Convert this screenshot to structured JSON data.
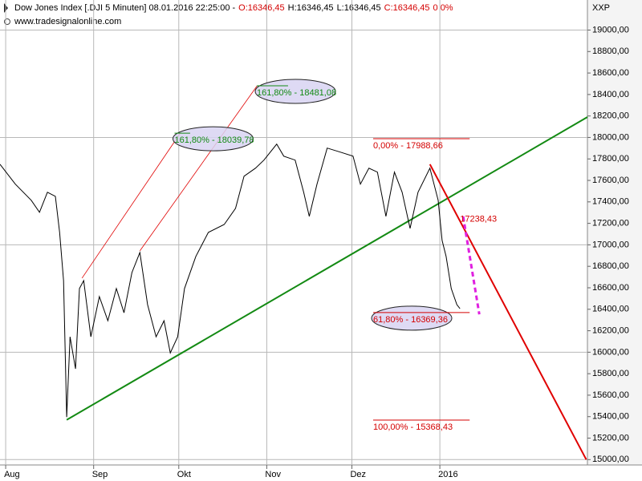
{
  "chart_data": {
    "type": "line",
    "title": "Dow Jones Index [.DJI  5 Minuten] 08.01.2016 22:25:00 -",
    "quote": [
      {
        "text": "O:16346,45",
        "color": "#d40000"
      },
      {
        "text": "H:16346,45",
        "color": "#000000"
      },
      {
        "text": "L:16346,45",
        "color": "#000000"
      },
      {
        "text": "C:16346,45",
        "color": "#d40000"
      },
      {
        "text": "0 0%",
        "color": "#d40000"
      }
    ],
    "subtitle": "www.tradesignalonline.com",
    "y_axis_label": "XXP",
    "xlim": [
      0,
      207
    ],
    "ylim": [
      14950,
      19280
    ],
    "xticks": [
      {
        "value": 2,
        "label": "Aug"
      },
      {
        "value": 33,
        "label": "Sep"
      },
      {
        "value": 63,
        "label": "Okt"
      },
      {
        "value": 94,
        "label": "Nov"
      },
      {
        "value": 124,
        "label": "Dez"
      },
      {
        "value": 155,
        "label": "2016"
      }
    ],
    "yticks": [
      {
        "value": 15000,
        "label": "15000,00"
      },
      {
        "value": 15200,
        "label": "15200,00"
      },
      {
        "value": 15400,
        "label": "15400,00"
      },
      {
        "value": 15600,
        "label": "15600,00"
      },
      {
        "value": 15800,
        "label": "15800,00"
      },
      {
        "value": 16000,
        "label": "16000,00"
      },
      {
        "value": 16200,
        "label": "16200,00"
      },
      {
        "value": 16400,
        "label": "16400,00"
      },
      {
        "value": 16600,
        "label": "16600,00"
      },
      {
        "value": 16800,
        "label": "16800,00"
      },
      {
        "value": 17000,
        "label": "17000,00"
      },
      {
        "value": 17200,
        "label": "17200,00"
      },
      {
        "value": 17400,
        "label": "17400,00"
      },
      {
        "value": 17600,
        "label": "17600,00"
      },
      {
        "value": 17800,
        "label": "17800,00"
      },
      {
        "value": 18000,
        "label": "18000,00"
      },
      {
        "value": 18200,
        "label": "18200,00"
      },
      {
        "value": 18400,
        "label": "18400,00"
      },
      {
        "value": 18600,
        "label": "18600,00"
      },
      {
        "value": 18800,
        "label": "18800,00"
      },
      {
        "value": 19000,
        "label": "19000,00"
      }
    ],
    "grid_every": 1000,
    "series": [
      {
        "color": "#000000",
        "x": [
          0,
          5.4,
          11,
          13.9,
          16.7,
          19.5,
          21,
          22.4,
          23.5,
          24.7,
          26.6,
          28,
          29.5,
          32,
          35,
          38,
          41,
          43.7,
          46.5,
          49.3,
          52,
          55,
          57.8,
          60,
          62.6,
          65,
          69,
          73.4,
          79,
          83,
          86,
          90,
          93,
          97.5,
          100,
          104,
          107,
          109,
          111.7,
          115.3,
          120,
          124.4,
          127,
          130,
          133,
          136,
          139,
          141.7,
          144.5,
          147.3,
          151.5,
          154.4,
          155.8,
          157.2,
          159,
          161,
          162.1
        ],
        "values": [
          17750,
          17565,
          17415,
          17303,
          17490,
          17452,
          17116,
          16667,
          15396,
          16144,
          15845,
          16593,
          16667,
          16144,
          16518,
          16293,
          16593,
          16368,
          16742,
          16929,
          16443,
          16144,
          16293,
          15994,
          16144,
          16593,
          16892,
          17116,
          17190,
          17340,
          17639,
          17714,
          17789,
          17938,
          17826,
          17789,
          17490,
          17265,
          17565,
          17901,
          17863,
          17826,
          17565,
          17714,
          17677,
          17265,
          17677,
          17490,
          17153,
          17490,
          17714,
          17415,
          17041,
          16892,
          16593,
          16443,
          16406
        ]
      }
    ],
    "trend_lines": [
      {
        "x": [
          23.5,
          207
        ],
        "values": [
          15370,
          18190
        ],
        "color": "#138a13"
      },
      {
        "x": [
          151.5,
          206.6
        ],
        "values": [
          17750,
          15000
        ],
        "color": "#e00000"
      },
      {
        "x": [
          28.9,
          63.5
        ],
        "values": [
          16690,
          18039
        ],
        "color": "#e00000"
      },
      {
        "x": [
          49.3,
          90.6
        ],
        "values": [
          16944,
          18481
        ],
        "color": "#e00000"
      },
      {
        "x": [
          163.2,
          168.9
        ],
        "values": [
          17265,
          16353
        ],
        "color": "#e020e0",
        "dashed": true
      }
    ],
    "levels": [
      {
        "label": "0,00% - 17988,66",
        "value": 17988.66,
        "x": [
          131.5,
          165.5
        ],
        "color": "#d40000"
      },
      {
        "label": "100,00% - 15368,43",
        "value": 15368.43,
        "x": [
          131.5,
          165.5
        ],
        "color": "#d40000"
      },
      {
        "label": "61,80% - 16369,36",
        "value": 16369.36,
        "x": [
          131.5,
          165.5
        ],
        "color": "#d40000",
        "highlight": true
      },
      {
        "label": "161,80% - 18039,78",
        "value": 18039.78,
        "x": [
          61.5,
          67
        ],
        "color": "#138a13",
        "highlight": true
      },
      {
        "label": "161,80% - 18481,08",
        "value": 18481.08,
        "x": [
          90.5,
          101.5
        ],
        "color": "#138a13",
        "highlight": true
      }
    ],
    "point_labels": [
      {
        "label": "17238,43",
        "x": 162.1,
        "value": 17238.43,
        "color": "#d40000"
      }
    ]
  }
}
